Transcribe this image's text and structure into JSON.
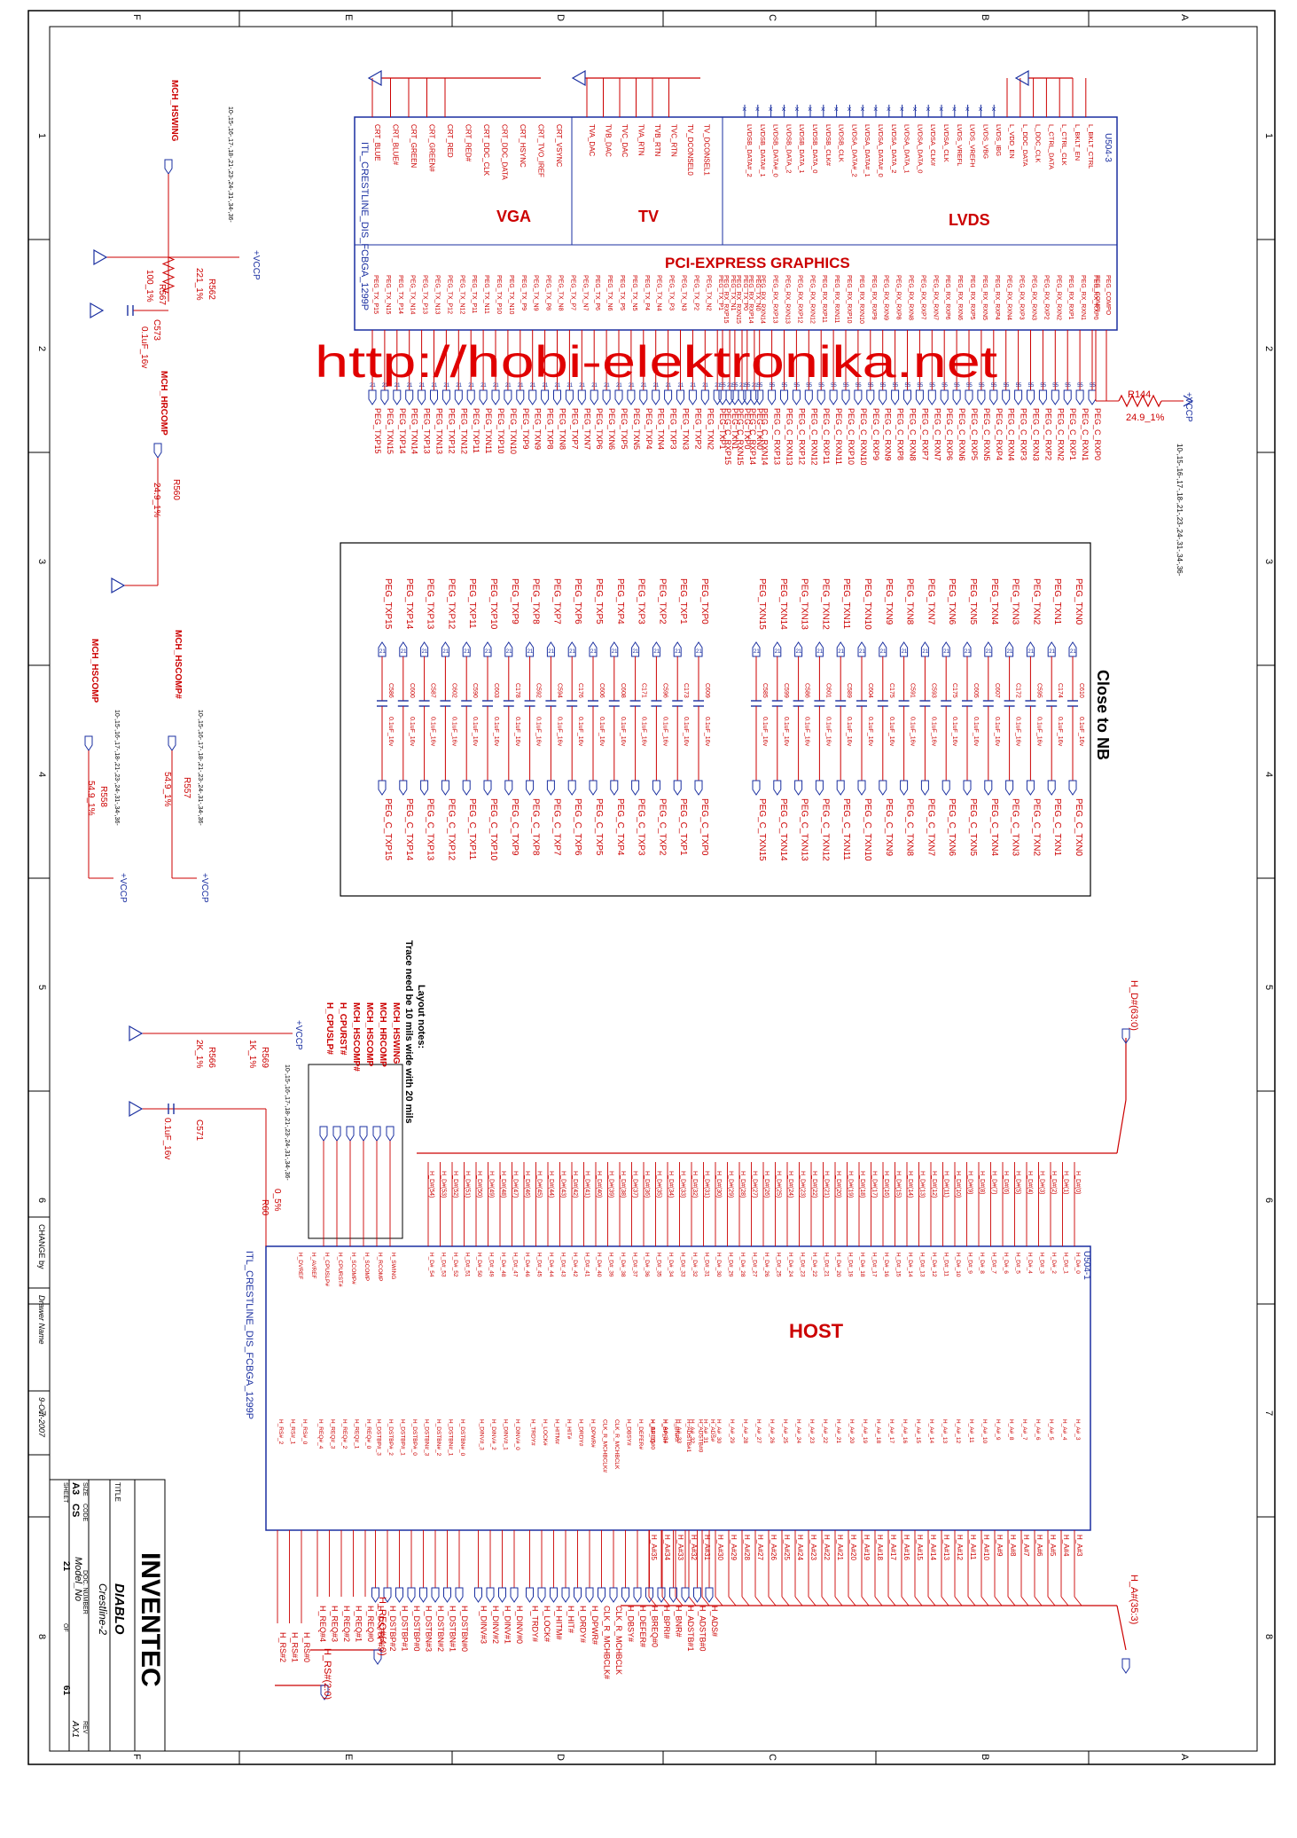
{
  "colors": {
    "wire": "#cc0000",
    "symbol": "#1a2fa0",
    "frame": "#000000",
    "label": "#cc0000",
    "watermark": "#e00000"
  },
  "watermark": "http://hobi-elektronika.net",
  "frame": {
    "col_letters_top": [
      "F",
      "E",
      "D",
      "C",
      "B",
      "A"
    ],
    "row_numbers_side": [
      "1",
      "2",
      "3",
      "4",
      "5",
      "6",
      "7",
      "8"
    ]
  },
  "u504_3": {
    "ref": "U504-3",
    "part": "ITL_CRESTLINE_DIS_FCBGA_1299P",
    "sections": {
      "vga": "VGA",
      "tv": "TV",
      "lvds": "LVDS",
      "pcie": "PCI-EXPRESS GRAPHICS"
    },
    "vga_pins": [
      "CRT_BLUE",
      "CRT_BLUE#",
      "CRT_GREEN",
      "CRT_GREEN#",
      "CRT_RED",
      "CRT_RED#",
      "CRT_DDC_CLK",
      "CRT_DDC_DATA",
      "CRT_HSYNC",
      "CRT_TVO_IREF",
      "CRT_VSYNC"
    ],
    "tv_pins": [
      "TVA_DAC",
      "TVB_DAC",
      "TVC_DAC",
      "TVA_RTN",
      "TVB_RTN",
      "TVC_RTN",
      "TV_DCONSEL0",
      "TV_DCONSEL1"
    ],
    "lvds_pins": [
      "L_BKLT_CTRL",
      "L_BKLT_EN",
      "L_CTRL_CLK",
      "L_CTRL_DATA",
      "L_DDC_CLK",
      "L_DDC_DATA",
      "L_VDD_EN",
      "LVDS_IBG",
      "LVDS_VBG",
      "LVDS_VREFH",
      "LVDS_VREFL",
      "LVDSA_CLK",
      "LVDSA_CLK#",
      "LVDSA_DATA_0",
      "LVDSA_DATA_1",
      "LVDSA_DATA_2",
      "LVDSA_DATA#_0",
      "LVDSA_DATA#_1",
      "LVDSA_DATA#_2",
      "LVDSB_CLK",
      "LVDSB_CLK#",
      "LVDSB_DATA_0",
      "LVDSB_DATA_1",
      "LVDSB_DATA_2",
      "LVDSB_DATA#_0",
      "LVDSB_DATA#_1",
      "LVDSB_DATA#_2"
    ],
    "peg_compi": "PEG_COMPI",
    "peg_compo": "PEG_COMPO"
  },
  "r144": {
    "ref": "R144",
    "value": "24.9_1%",
    "rail": "+VCCP",
    "refs": "10-,15-,16-,17-,18-,21-,23-,24-,31-,34-,36-"
  },
  "peg_rx_nets": [
    "PEG_C_RXN0",
    "PEG_C_RXN1",
    "PEG_C_RXN2",
    "PEG_C_RXN3",
    "PEG_C_RXN4",
    "PEG_C_RXN5",
    "PEG_C_RXN6",
    "PEG_C_RXN7",
    "PEG_C_RXN8",
    "PEG_C_RXN9",
    "PEG_C_RXN10",
    "PEG_C_RXN11",
    "PEG_C_RXN12",
    "PEG_C_RXN13",
    "PEG_C_RXN14",
    "PEG_C_RXN15",
    "PEG_C_RXP0",
    "PEG_C_RXP1",
    "PEG_C_RXP2",
    "PEG_C_RXP3",
    "PEG_C_RXP4",
    "PEG_C_RXP5",
    "PEG_C_RXP6",
    "PEG_C_RXP7",
    "PEG_C_RXP8",
    "PEG_C_RXP9",
    "PEG_C_RXP10",
    "PEG_C_RXP11",
    "PEG_C_RXP12",
    "PEG_C_RXP13",
    "PEG_C_RXP14",
    "PEG_C_RXP15"
  ],
  "peg_tx_nets": [
    "PEG_TXN0",
    "PEG_TXN1",
    "PEG_TXN2",
    "PEG_TXN3",
    "PEG_TXN4",
    "PEG_TXN5",
    "PEG_TXN6",
    "PEG_TXN7",
    "PEG_TXN8",
    "PEG_TXN9",
    "PEG_TXN10",
    "PEG_TXN11",
    "PEG_TXN12",
    "PEG_TXN13",
    "PEG_TXN14",
    "PEG_TXN15",
    "PEG_TXP0",
    "PEG_TXP1",
    "PEG_TXP2",
    "PEG_TXP3",
    "PEG_TXP4",
    "PEG_TXP5",
    "PEG_TXP6",
    "PEG_TXP7",
    "PEG_TXP8",
    "PEG_TXP9",
    "PEG_TXP10",
    "PEG_TXP11",
    "PEG_TXP12",
    "PEG_TXP13",
    "PEG_TXP14",
    "PEG_TXP15"
  ],
  "close_to_nb": {
    "title": "Close to NB",
    "in_nets": [
      "PEG_TXN0",
      "PEG_TXN1",
      "PEG_TXN2",
      "PEG_TXN3",
      "PEG_TXN4",
      "PEG_TXN5",
      "PEG_TXN6",
      "PEG_TXN7",
      "PEG_TXN8",
      "PEG_TXN9",
      "PEG_TXN10",
      "PEG_TXN11",
      "PEG_TXN12",
      "PEG_TXN13",
      "PEG_TXN14",
      "PEG_TXN15",
      "PEG_TXP0",
      "PEG_TXP1",
      "PEG_TXP2",
      "PEG_TXP3",
      "PEG_TXP4",
      "PEG_TXP5",
      "PEG_TXP6",
      "PEG_TXP7",
      "PEG_TXP8",
      "PEG_TXP9",
      "PEG_TXP10",
      "PEG_TXP11",
      "PEG_TXP12",
      "PEG_TXP13",
      "PEG_TXP14",
      "PEG_TXP15"
    ],
    "out_nets": [
      "PEG_C_TXN0",
      "PEG_C_TXN1",
      "PEG_C_TXN2",
      "PEG_C_TXN3",
      "PEG_C_TXN4",
      "PEG_C_TXN5",
      "PEG_C_TXN6",
      "PEG_C_TXN7",
      "PEG_C_TXN8",
      "PEG_C_TXN9",
      "PEG_C_TXN10",
      "PEG_C_TXN11",
      "PEG_C_TXN12",
      "PEG_C_TXN13",
      "PEG_C_TXN14",
      "PEG_C_TXN15",
      "PEG_C_TXP0",
      "PEG_C_TXP1",
      "PEG_C_TXP2",
      "PEG_C_TXP3",
      "PEG_C_TXP4",
      "PEG_C_TXP5",
      "PEG_C_TXP6",
      "PEG_C_TXP7",
      "PEG_C_TXP8",
      "PEG_C_TXP9",
      "PEG_C_TXP10",
      "PEG_C_TXP11",
      "PEG_C_TXP12",
      "PEG_C_TXP13",
      "PEG_C_TXP14",
      "PEG_C_TXP15"
    ],
    "cap_refs": [
      "C610",
      "C174",
      "C595",
      "C172",
      "C607",
      "C605",
      "C175",
      "C593",
      "C591",
      "C175",
      "C604",
      "C589",
      "C601",
      "C586",
      "C599",
      "C585",
      "C609",
      "C173",
      "C596",
      "C171",
      "C608",
      "C606",
      "C176",
      "C594",
      "C592",
      "C178",
      "C603",
      "C590",
      "C602",
      "C587",
      "C600",
      "C586"
    ],
    "cap_value": "0.1uF_16v"
  },
  "left_top": {
    "net": "MCH_HSWING",
    "refs": "10-,15-,16-,17-,18-,21-,23-,24-,31-,34-,36-",
    "r562": {
      "ref": "R562",
      "value": "221_1%"
    },
    "r567": {
      "ref": "R567",
      "value": "100_1%"
    },
    "c573": {
      "ref": "C573",
      "value": "0.1uF_16v"
    },
    "rail": "+VCCP"
  },
  "left_mid": {
    "net": "MCH_HRCOMP",
    "r560": {
      "ref": "R560",
      "value": "24.9_1%"
    }
  },
  "left_low": {
    "hscomp_net": "MCH_HSCOMP",
    "hscompn_net": "MCH_HSCOMP#",
    "refs": "10-,15-,16-,17-,18-,21-,23-,24-,31-,34-,36-",
    "r558": {
      "ref": "R558",
      "value": "54.9_1%"
    },
    "r557": {
      "ref": "R557",
      "value": "54.9_1%"
    },
    "rail": "+VCCP"
  },
  "layout_notes": {
    "title": "Layout notes:",
    "text": "Trace need be 10 mils wide with 20 mils"
  },
  "host_misc": {
    "rail": "+VCCP",
    "refs": "10-,15-,16-,17-,18-,21-,23-,24-,31-,34-,36-",
    "r569": {
      "ref": "R569",
      "value": "1K_1%"
    },
    "r566": {
      "ref": "R566",
      "value": "2K_1%"
    },
    "c571": {
      "ref": "C571",
      "value": "0.1uF_16v"
    },
    "r60": {
      "ref": "R60",
      "value": "0_5%"
    },
    "nets": [
      "MCH_HSWING",
      "MCH_HRCOMP",
      "MCH_HSCOMP",
      "MCH_HSCOMP#",
      "H_CPURST#",
      "H_CPUSLP#"
    ],
    "pins": [
      "H_SWING",
      "H_RCOMP",
      "H_SCOMP",
      "H_SCOMP#",
      "H_CPURST#",
      "H_CPUSLP#",
      "H_AVREF",
      "H_DVREF"
    ]
  },
  "u504_1": {
    "ref": "U504-1",
    "part": "ITL_CRESTLINE_DIS_FCBGA_1299P",
    "title": "HOST",
    "hd_bus": "H_D#(63:0)",
    "ha_bus": "H_A#(35:3)",
    "req_bus": "H_REQ#(4:0)",
    "rs_bus": "H_RS#(2:0)",
    "ha_nets": [
      "H_A#3",
      "H_A#4",
      "H_A#5",
      "H_A#6",
      "H_A#7",
      "H_A#8",
      "H_A#9",
      "H_A#10",
      "H_A#11",
      "H_A#12",
      "H_A#13",
      "H_A#14",
      "H_A#15",
      "H_A#16",
      "H_A#17",
      "H_A#18",
      "H_A#19",
      "H_A#20",
      "H_A#21",
      "H_A#22",
      "H_A#23",
      "H_A#24",
      "H_A#25",
      "H_A#26",
      "H_A#27",
      "H_A#28",
      "H_A#29",
      "H_A#30",
      "H_A#31",
      "H_A#32",
      "H_A#33",
      "H_A#34",
      "H_A#35"
    ],
    "ctrl_nets": [
      "H_ADS#",
      "H_ADSTB#0",
      "H_ADSTB#1",
      "H_BNR#",
      "H_BPRI#",
      "H_BREQ#0",
      "H_DEFER#",
      "H_DBSY#",
      "CLK_R_MCHBCLK",
      "CLK_R_MCHBCLK#",
      "H_DPWR#",
      "H_DRDY#",
      "H_HIT#",
      "H_HITM#",
      "H_LOCK#",
      "H_TRDY#"
    ],
    "dinv_nets": [
      "H_DINV#0",
      "H_DINV#1",
      "H_DINV#2",
      "H_DINV#3"
    ],
    "dstb_nets": [
      "H_DSTBN#0",
      "H_DSTBN#1",
      "H_DSTBN#2",
      "H_DSTBN#3",
      "H_DSTBP#0",
      "H_DSTBP#1",
      "H_DSTBP#2",
      "H_DSTBP#3"
    ],
    "req_nets": [
      "H_REQ#0",
      "H_REQ#1",
      "H_REQ#2",
      "H_REQ#3",
      "H_REQ#4"
    ],
    "rs_nets": [
      "H_RS#0",
      "H_RS#1",
      "H_RS#2"
    ]
  },
  "title_block": {
    "company": "INVENTEC",
    "title_label": "TITLE",
    "title": "DIABLO",
    "subtitle": "Crestline-2",
    "size_label": "SIZE",
    "size": "A3",
    "code_label": "CODE",
    "code": "CS",
    "doc_label": "DOC. NUMBER",
    "doc": "Model_No",
    "rev_label": "REV",
    "rev": "AX1",
    "sheet_label": "SHEET",
    "sheet": "21",
    "of_label": "OF",
    "total": "61",
    "change_by": "CHANGE by",
    "drawer": "Drawer Name",
    "date": "9-Oct-2007"
  }
}
